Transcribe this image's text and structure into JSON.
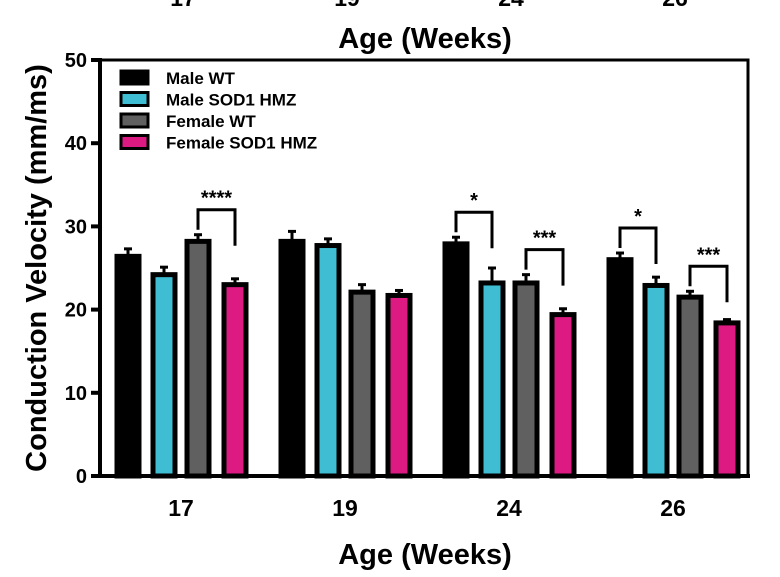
{
  "chart_data": {
    "type": "bar",
    "title": "Age  (Weeks)",
    "xlabel": "Age  (Weeks)",
    "ylabel": "Conduction Velocity  (mm/ms)",
    "ylim": [
      0,
      50
    ],
    "yticks": [
      "0",
      "10",
      "20",
      "30",
      "40",
      "50"
    ],
    "categories": [
      "17",
      "19",
      "24",
      "26"
    ],
    "grid": false,
    "legend_position": "top-left",
    "series": [
      {
        "name": "Male WT",
        "color": "#000000",
        "values": [
          26.4,
          28.2,
          27.9,
          26.0
        ],
        "error": [
          0.9,
          1.2,
          0.8,
          0.8
        ]
      },
      {
        "name": "Male SOD1 HMZ",
        "color": "#3fbdd3",
        "values": [
          24.2,
          27.7,
          23.2,
          22.9
        ],
        "error": [
          0.9,
          0.8,
          1.8,
          1.0
        ]
      },
      {
        "name": "Female WT",
        "color": "#606060",
        "values": [
          28.2,
          22.1,
          23.2,
          21.5
        ],
        "error": [
          0.8,
          0.9,
          1.0,
          0.7
        ]
      },
      {
        "name": "Female SOD1 HMZ",
        "color": "#dd1a82",
        "values": [
          23.0,
          21.7,
          19.4,
          18.4
        ],
        "error": [
          0.7,
          0.6,
          0.7,
          0.4
        ]
      }
    ],
    "annotations": [
      {
        "category": "17",
        "from": "Female WT",
        "to": "Female SOD1 HMZ",
        "label": "****"
      },
      {
        "category": "24",
        "from": "Male WT",
        "to": "Male SOD1 HMZ",
        "label": "*"
      },
      {
        "category": "24",
        "from": "Female WT",
        "to": "Female SOD1 HMZ",
        "label": "***"
      },
      {
        "category": "26",
        "from": "Male WT",
        "to": "Male SOD1 HMZ",
        "label": "*"
      },
      {
        "category": "26",
        "from": "Female WT",
        "to": "Female SOD1 HMZ",
        "label": "***"
      }
    ]
  }
}
